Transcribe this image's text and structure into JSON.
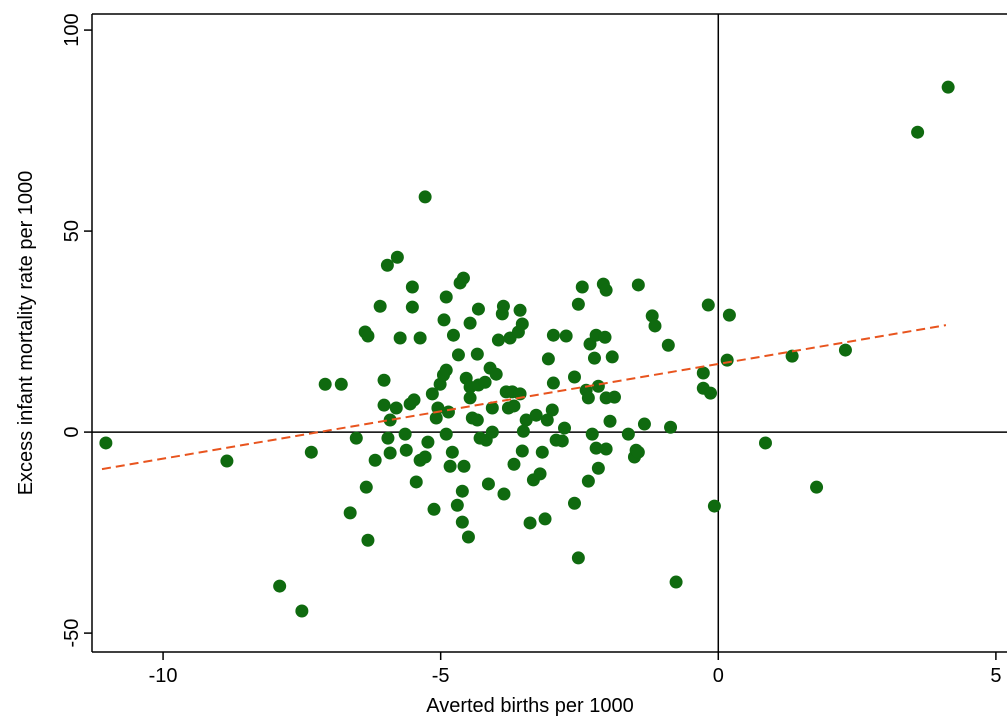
{
  "chart_data": {
    "type": "scatter",
    "x_label": "Averted births per 1000",
    "y_label": "Excess infant mortality rate per 1000",
    "xlim": [
      -11.28,
      5.2
    ],
    "ylim": [
      -54.7,
      104
    ],
    "xticks": [
      -10,
      -5,
      0,
      5
    ],
    "yticks": [
      -50,
      0,
      50,
      100
    ],
    "reference_lines": {
      "x": 0,
      "y": 0
    },
    "color": "#0f6a0f",
    "x": [
      -11.03,
      -8.85,
      -7.9,
      -7.5,
      -7.33,
      -7.08,
      -6.79,
      -6.63,
      -6.52,
      -6.36,
      -6.31,
      -6.34,
      -6.31,
      -6.18,
      -6.09,
      -6.02,
      -6.02,
      -5.96,
      -5.78,
      -5.95,
      -5.91,
      -5.91,
      -5.8,
      -5.73,
      -5.64,
      -5.62,
      -5.55,
      -5.51,
      -5.51,
      -5.48,
      -5.44,
      -5.37,
      -5.37,
      -5.28,
      -5.28,
      -5.23,
      -5.15,
      -5.12,
      -5.08,
      -5.05,
      -5.01,
      -4.95,
      -4.94,
      -4.9,
      -4.9,
      -4.9,
      -4.86,
      -4.83,
      -4.79,
      -4.77,
      -4.7,
      -4.68,
      -4.65,
      -4.61,
      -4.61,
      -4.59,
      -4.58,
      -4.54,
      -4.5,
      -4.47,
      -4.47,
      -4.47,
      -4.43,
      -4.34,
      -4.34,
      -4.32,
      -4.32,
      -4.29,
      -4.2,
      -4.18,
      -4.14,
      -4.11,
      -4.07,
      -4.07,
      -4.0,
      -3.96,
      -3.89,
      -3.87,
      -3.86,
      -3.82,
      -3.78,
      -3.75,
      -3.71,
      -3.68,
      -3.68,
      -3.6,
      -3.57,
      -3.57,
      -3.53,
      -3.53,
      -3.51,
      -3.46,
      -3.39,
      -3.33,
      -3.28,
      -3.21,
      -3.17,
      -3.12,
      -3.08,
      -3.06,
      -2.99,
      -2.97,
      -2.97,
      -2.92,
      -2.81,
      -2.77,
      -2.74,
      -2.59,
      -2.59,
      -2.52,
      -2.52,
      -2.45,
      -2.38,
      -2.34,
      -2.34,
      -2.31,
      -2.27,
      -2.23,
      -2.2,
      -2.2,
      -2.16,
      -2.16,
      -2.07,
      -2.04,
      -2.02,
      -2.02,
      -2.02,
      -1.95,
      -1.91,
      -1.87,
      -1.62,
      -1.51,
      -1.48,
      -1.44,
      -1.44,
      -1.33,
      -1.19,
      -1.14,
      -0.9,
      -0.86,
      -0.76,
      -0.27,
      -0.27,
      -0.18,
      -0.14,
      -0.07,
      0.16,
      0.2,
      0.85,
      1.33,
      1.77,
      2.29,
      3.59,
      4.14
    ],
    "values": [
      -2.7,
      -7.2,
      -38.3,
      -44.5,
      -5,
      11.9,
      11.9,
      -20.1,
      -1.5,
      24.9,
      23.9,
      -13.7,
      -26.9,
      -7,
      31.3,
      12.9,
      6.7,
      41.5,
      43.5,
      -1.5,
      -5.2,
      3,
      6,
      23.4,
      -0.5,
      -4.5,
      7,
      36.1,
      31.1,
      8,
      -12.4,
      23.4,
      -7,
      58.5,
      -6.2,
      -2.5,
      9.5,
      -19.2,
      3.5,
      6,
      11.9,
      14.2,
      27.9,
      33.6,
      15.4,
      -0.5,
      5,
      -8.5,
      -5,
      24.1,
      -18.2,
      19.2,
      37.1,
      -14.7,
      -22.4,
      38.3,
      -8.5,
      13.4,
      -26.1,
      27.1,
      11.2,
      8.5,
      3.5,
      19.4,
      3,
      11.7,
      30.6,
      -1.5,
      12.4,
      -2,
      -12.9,
      15.9,
      6,
      0,
      14.4,
      22.9,
      29.4,
      31.3,
      -15.4,
      10,
      6,
      23.4,
      10,
      6.5,
      -8,
      24.9,
      30.3,
      9.5,
      26.9,
      -4.7,
      0.2,
      3,
      -22.6,
      -11.9,
      4.2,
      -10.4,
      -5,
      -21.6,
      3,
      18.2,
      5.5,
      12.2,
      24.1,
      -2,
      -2.2,
      1,
      23.9,
      13.7,
      -17.7,
      -31.3,
      31.8,
      36.1,
      10.4,
      8.5,
      -12.2,
      21.9,
      -0.5,
      18.4,
      24.1,
      -4,
      -9,
      11.4,
      36.8,
      23.6,
      35.3,
      8.5,
      -4.2,
      2.7,
      18.7,
      8.7,
      -0.5,
      -6.2,
      -4.5,
      -5,
      36.6,
      2,
      28.9,
      26.4,
      21.6,
      1.2,
      -37.3,
      14.7,
      10.9,
      31.6,
      9.7,
      -18.4,
      17.9,
      29.1,
      -2.7,
      18.9,
      -13.7,
      20.4,
      74.6,
      85.8
    ],
    "fit_line": {
      "x": [
        -11.1,
        4.1
      ],
      "y": [
        -9.2,
        26.6
      ],
      "color": "#e8541e"
    }
  }
}
